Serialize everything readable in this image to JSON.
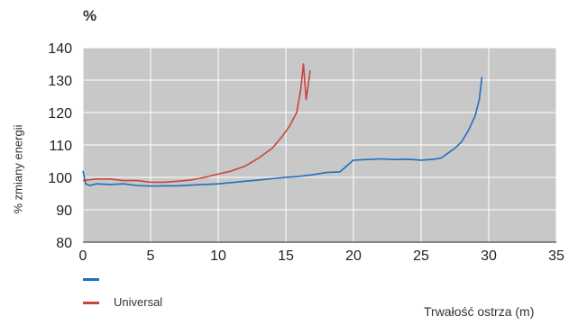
{
  "chart_data": {
    "type": "line",
    "unit_label": "%",
    "ylabel": "% zmiany energii",
    "xlabel": "Trwałość ostrza (m)",
    "xlim": [
      0,
      35
    ],
    "ylim": [
      80,
      140
    ],
    "x_ticks": [
      "0",
      "5",
      "10",
      "15",
      "20",
      "25",
      "30",
      "35"
    ],
    "y_ticks": [
      "80",
      "90",
      "100",
      "110",
      "120",
      "130",
      "140"
    ],
    "grid": true,
    "plot_background": "#c8c8c8",
    "legend_position": "bottom-left",
    "series": [
      {
        "name": "",
        "color": "#1f6fbf",
        "points": [
          [
            0,
            102
          ],
          [
            0.2,
            98
          ],
          [
            0.5,
            97.5
          ],
          [
            1,
            98
          ],
          [
            2,
            97.8
          ],
          [
            3,
            98
          ],
          [
            4,
            97.5
          ],
          [
            5,
            97.3
          ],
          [
            6,
            97.4
          ],
          [
            7,
            97.4
          ],
          [
            8,
            97.6
          ],
          [
            9,
            97.8
          ],
          [
            10,
            98
          ],
          [
            11,
            98.4
          ],
          [
            12,
            98.8
          ],
          [
            13,
            99.2
          ],
          [
            14,
            99.6
          ],
          [
            15,
            100
          ],
          [
            16,
            100.3
          ],
          [
            17,
            100.8
          ],
          [
            18,
            101.5
          ],
          [
            19,
            101.7
          ],
          [
            20,
            105.3
          ],
          [
            21,
            105.5
          ],
          [
            22,
            105.7
          ],
          [
            23,
            105.5
          ],
          [
            24,
            105.6
          ],
          [
            25,
            105.3
          ],
          [
            26,
            105.6
          ],
          [
            26.5,
            106
          ],
          [
            27,
            107.5
          ],
          [
            27.5,
            109
          ],
          [
            28,
            111
          ],
          [
            28.5,
            114.5
          ],
          [
            29,
            119
          ],
          [
            29.3,
            124
          ],
          [
            29.5,
            131
          ]
        ]
      },
      {
        "name": "Universal",
        "color": "#c9453b",
        "points": [
          [
            0,
            99
          ],
          [
            1,
            99.5
          ],
          [
            2,
            99.5
          ],
          [
            3,
            99
          ],
          [
            4,
            99
          ],
          [
            5,
            98.5
          ],
          [
            6,
            98.5
          ],
          [
            7,
            98.8
          ],
          [
            8,
            99.2
          ],
          [
            9,
            100
          ],
          [
            10,
            101
          ],
          [
            11,
            102
          ],
          [
            12,
            103.5
          ],
          [
            13,
            106
          ],
          [
            14,
            109
          ],
          [
            14.8,
            113
          ],
          [
            15.3,
            116
          ],
          [
            15.8,
            120
          ],
          [
            16.1,
            127
          ],
          [
            16.3,
            135
          ],
          [
            16.5,
            124
          ],
          [
            16.8,
            133
          ]
        ]
      }
    ]
  }
}
